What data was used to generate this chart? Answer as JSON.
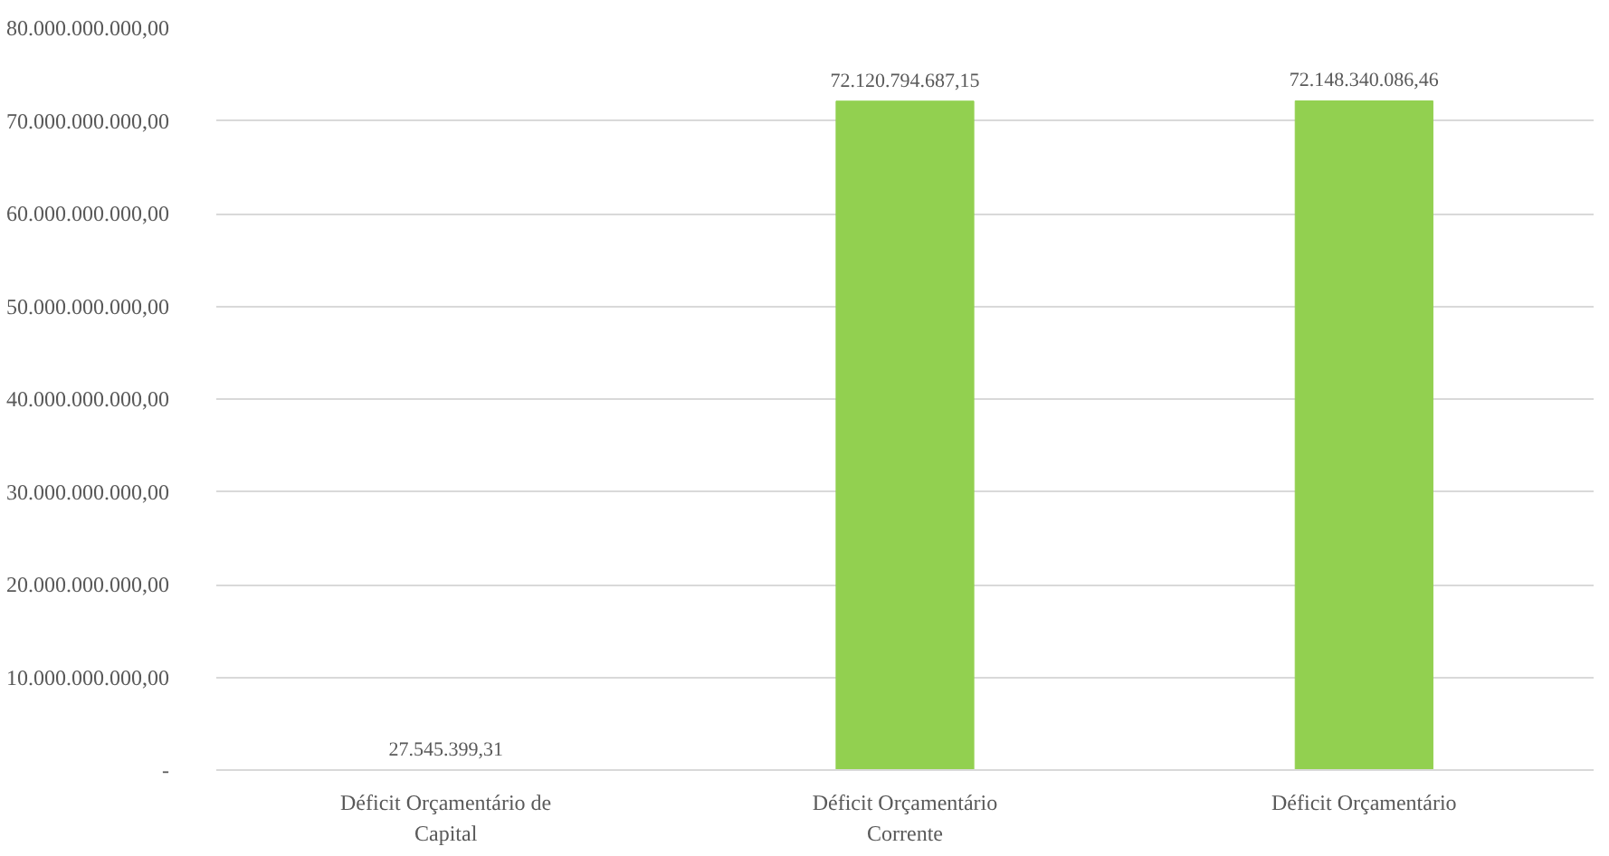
{
  "chart_data": {
    "type": "bar",
    "categories": [
      "Déficit Orçamentário de Capital",
      "Déficit Orçamentário Corrente",
      "Déficit Orçamentário"
    ],
    "values": [
      27545399.31,
      72120794687.15,
      72148340086.46
    ],
    "value_labels": [
      "27.545.399,31",
      "72.120.794.687,15",
      "72.148.340.086,46"
    ],
    "color": "#92d050",
    "ylim": [
      0,
      80000000000
    ],
    "yticks": [
      {
        "value": 0,
        "label": "-"
      },
      {
        "value": 10000000000,
        "label": "10.000.000.000,00"
      },
      {
        "value": 20000000000,
        "label": "20.000.000.000,00"
      },
      {
        "value": 30000000000,
        "label": "30.000.000.000,00"
      },
      {
        "value": 40000000000,
        "label": "40.000.000.000,00"
      },
      {
        "value": 50000000000,
        "label": "50.000.000.000,00"
      },
      {
        "value": 60000000000,
        "label": "60.000.000.000,00"
      },
      {
        "value": 70000000000,
        "label": "70.000.000.000,00"
      },
      {
        "value": 80000000000,
        "label": "80.000.000.000,00"
      }
    ],
    "grid": "y"
  }
}
